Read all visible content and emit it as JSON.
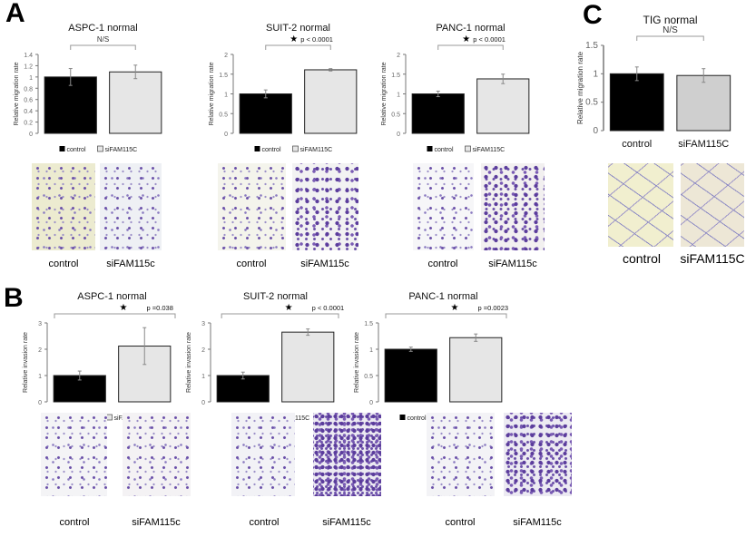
{
  "panels": {
    "a": "A",
    "b": "B",
    "c": "C"
  },
  "captions": {
    "control": "control",
    "si": "siFAM115c",
    "si_c": "siFAM115C"
  },
  "chart_data": [
    {
      "type": "bar",
      "title": "ASPC-1 normal",
      "ylabel": "Relative migration rate",
      "ylim": [
        0,
        1.4
      ],
      "ticks": [
        "0",
        "0.2",
        "0.4",
        "0.6",
        "0.8",
        "1",
        "1.2",
        "1.4"
      ],
      "categories": [
        "control",
        "siFAM115C"
      ],
      "values": [
        1.0,
        1.09
      ],
      "errors": [
        0.15,
        0.12
      ],
      "annotation": "N/S",
      "star": false,
      "legend": true
    },
    {
      "type": "bar",
      "title": "SUIT-2 normal",
      "ylabel": "Relative migration rate",
      "ylim": [
        0,
        2
      ],
      "ticks": [
        "0",
        "0.5",
        "1",
        "1.5",
        "2"
      ],
      "categories": [
        "control",
        "siFAM115C"
      ],
      "values": [
        1.0,
        1.61
      ],
      "errors": [
        0.1,
        0.03
      ],
      "annotation": "p < 0.0001",
      "star": true,
      "legend": true
    },
    {
      "type": "bar",
      "title": "PANC-1 normal",
      "ylabel": "Relative migration rate",
      "ylim": [
        0,
        2
      ],
      "ticks": [
        "0",
        "0.5",
        "1",
        "1.5",
        "2"
      ],
      "categories": [
        "control",
        "siFAM115C"
      ],
      "values": [
        1.0,
        1.38
      ],
      "errors": [
        0.07,
        0.12
      ],
      "annotation": "p < 0.0001",
      "star": true,
      "legend": true
    },
    {
      "type": "bar",
      "title": "TIG normal",
      "ylabel": "Relative migration rate",
      "ylim": [
        0,
        1.5
      ],
      "ticks": [
        "0",
        "0.5",
        "1",
        "1.5"
      ],
      "categories": [
        "control",
        "siFAM115C"
      ],
      "values": [
        1.0,
        0.97
      ],
      "errors": [
        0.12,
        0.12
      ],
      "annotation": "N/S",
      "star": false,
      "legend": false,
      "grey": "#cfcfcf"
    },
    {
      "type": "bar",
      "title": "ASPC-1 normal",
      "ylabel": "Relative invasion rate",
      "ylim": [
        0,
        3
      ],
      "ticks": [
        "0",
        "1",
        "2",
        "3"
      ],
      "categories": [
        "control",
        "siFAM115C"
      ],
      "values": [
        1.0,
        2.12
      ],
      "errors": [
        0.17,
        0.7
      ],
      "annotation": "p =0.038",
      "star": true,
      "legend": true
    },
    {
      "type": "bar",
      "title": "SUIT-2 normal",
      "ylabel": "Relative invasion rate",
      "ylim": [
        0,
        3
      ],
      "ticks": [
        "0",
        "1",
        "2",
        "3"
      ],
      "categories": [
        "control",
        "siFAM115C"
      ],
      "values": [
        1.0,
        2.65
      ],
      "errors": [
        0.13,
        0.12
      ],
      "annotation": "p < 0.0001",
      "star": true,
      "legend": true
    },
    {
      "type": "bar",
      "title": "PANC-1 normal",
      "ylabel": "Relative invasion rate",
      "ylim": [
        0,
        1.5
      ],
      "ticks": [
        "0",
        "0.5",
        "1",
        "1.5"
      ],
      "categories": [
        "control",
        "siFAM115C"
      ],
      "values": [
        1.0,
        1.22
      ],
      "errors": [
        0.04,
        0.07
      ],
      "annotation": "p =0.0023",
      "star": true,
      "legend": true
    }
  ]
}
